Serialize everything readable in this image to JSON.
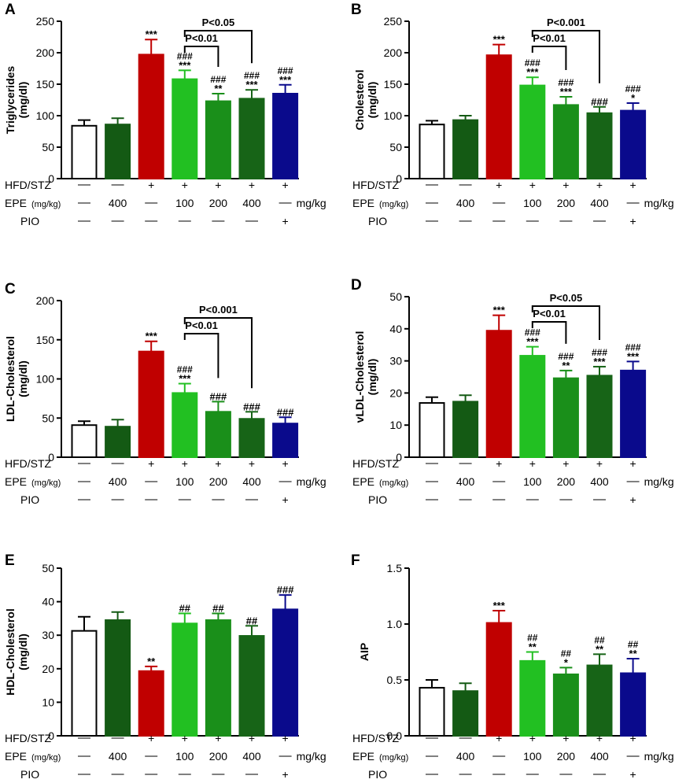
{
  "colors": {
    "control": "#ffffff",
    "epe400": "#145a14",
    "hfd": "#c00000",
    "epe100": "#22c022",
    "epe200": "#1a8f1a",
    "epe400hfd": "#176417",
    "pio": "#0a0a8c"
  },
  "bar_color_keys": [
    "control",
    "epe400",
    "hfd",
    "epe100",
    "epe200",
    "epe400hfd",
    "pio"
  ],
  "condition_table": {
    "rows": [
      {
        "label": "HFD/STZ",
        "suffix": "",
        "suffix_unit": "",
        "cells": [
          "—",
          "—",
          "+",
          "+",
          "+",
          "+",
          "+"
        ]
      },
      {
        "label": "EPE",
        "suffix": "(mg/kg)",
        "suffix_unit": "mg/kg",
        "cells": [
          "—",
          "400",
          "—",
          "100",
          "200",
          "400",
          "—"
        ]
      },
      {
        "label": "PIO",
        "suffix": "",
        "suffix_unit": "",
        "cells": [
          "—",
          "—",
          "—",
          "—",
          "—",
          "—",
          "+"
        ]
      }
    ]
  },
  "chart_data": [
    {
      "panel": "A",
      "type": "bar",
      "ylabel_line1": "Triglycerides",
      "ylabel_line2": "(mg/dl)",
      "ylim": [
        0,
        250
      ],
      "yticks": [
        "0",
        "50",
        "100",
        "150",
        "200",
        "250"
      ],
      "values": [
        84,
        86,
        197,
        158,
        123,
        127,
        135
      ],
      "errors": [
        9,
        10,
        24,
        14,
        12,
        14,
        14
      ],
      "annotations": [
        [
          "",
          ""
        ],
        [
          "",
          ""
        ],
        [
          "",
          "***"
        ],
        [
          "###",
          "***"
        ],
        [
          "###",
          "**"
        ],
        [
          "###",
          "***"
        ],
        [
          "###",
          "***"
        ]
      ],
      "brackets": [
        {
          "label": "P<0.01",
          "from": 3,
          "to": 4
        },
        {
          "label": "P<0.05",
          "from": 3,
          "to": 5
        }
      ]
    },
    {
      "panel": "B",
      "type": "bar",
      "ylabel_line1": "Cholesterol",
      "ylabel_line2": "(mg/dl)",
      "ylim": [
        0,
        250
      ],
      "yticks": [
        "0",
        "50",
        "100",
        "150",
        "200",
        "250"
      ],
      "values": [
        86,
        93,
        196,
        148,
        117,
        104,
        108
      ],
      "errors": [
        6,
        7,
        17,
        13,
        13,
        10,
        12
      ],
      "annotations": [
        [
          "",
          ""
        ],
        [
          "",
          ""
        ],
        [
          "",
          "***"
        ],
        [
          "###",
          "***"
        ],
        [
          "###",
          "***"
        ],
        [
          "",
          "###"
        ],
        [
          "###",
          "*"
        ]
      ],
      "brackets": [
        {
          "label": "P<0.01",
          "from": 3,
          "to": 4
        },
        {
          "label": "P<0.001",
          "from": 3,
          "to": 5
        }
      ]
    },
    {
      "panel": "C",
      "type": "bar",
      "ylabel_line1": "LDL-Cholesterol",
      "ylabel_line2": "(mg/dl)",
      "ylim": [
        0,
        200
      ],
      "yticks": [
        "0",
        "50",
        "100",
        "150",
        "200"
      ],
      "values": [
        41,
        39,
        135,
        82,
        58,
        49,
        43
      ],
      "errors": [
        5,
        9,
        13,
        12,
        13,
        9,
        8
      ],
      "annotations": [
        [
          "",
          ""
        ],
        [
          "",
          ""
        ],
        [
          "",
          "***"
        ],
        [
          "###",
          "***"
        ],
        [
          "",
          "###"
        ],
        [
          "",
          "###"
        ],
        [
          "",
          "###"
        ]
      ],
      "brackets": [
        {
          "label": "P<0.01",
          "from": 3,
          "to": 4
        },
        {
          "label": "P<0.001",
          "from": 3,
          "to": 5
        }
      ]
    },
    {
      "panel": "D",
      "type": "bar",
      "ylabel_line1": "vLDL-Cholesterol",
      "ylabel_line2": "(mg/dl)",
      "ylim": [
        0,
        50
      ],
      "yticks": [
        "0",
        "10",
        "20",
        "30",
        "40",
        "50"
      ],
      "values": [
        16.9,
        17.3,
        39.4,
        31.6,
        24.6,
        25.4,
        27.0
      ],
      "errors": [
        1.8,
        2.0,
        4.8,
        2.8,
        2.4,
        2.8,
        2.8
      ],
      "annotations": [
        [
          "",
          ""
        ],
        [
          "",
          ""
        ],
        [
          "",
          "***"
        ],
        [
          "###",
          "***"
        ],
        [
          "###",
          "**"
        ],
        [
          "###",
          "***"
        ],
        [
          "###",
          "***"
        ]
      ],
      "brackets": [
        {
          "label": "P<0.01",
          "from": 3,
          "to": 4
        },
        {
          "label": "P<0.05",
          "from": 3,
          "to": 5
        }
      ]
    },
    {
      "panel": "E",
      "type": "bar",
      "ylabel_line1": "HDL-Cholesterol",
      "ylabel_line2": "(mg/dl)",
      "ylim": [
        0,
        50
      ],
      "yticks": [
        "0",
        "10",
        "20",
        "30",
        "40",
        "50"
      ],
      "values": [
        31.3,
        34.5,
        19.3,
        33.5,
        34.5,
        29.8,
        37.7
      ],
      "errors": [
        4.2,
        2.4,
        1.4,
        3.0,
        2.0,
        3.0,
        4.3
      ],
      "annotations": [
        [
          "",
          ""
        ],
        [
          "",
          ""
        ],
        [
          "",
          "**"
        ],
        [
          "",
          "##"
        ],
        [
          "",
          "##"
        ],
        [
          "",
          "##"
        ],
        [
          "",
          "###"
        ]
      ],
      "brackets": []
    },
    {
      "panel": "F",
      "type": "bar",
      "ylabel_line1": "AIP",
      "ylabel_line2": "",
      "ylim": [
        0,
        1.5
      ],
      "yticks": [
        "0.0",
        "0.5",
        "1.0",
        "1.5"
      ],
      "values": [
        0.43,
        0.4,
        1.01,
        0.67,
        0.55,
        0.63,
        0.56
      ],
      "errors": [
        0.07,
        0.07,
        0.11,
        0.08,
        0.06,
        0.1,
        0.13
      ],
      "annotations": [
        [
          "",
          ""
        ],
        [
          "",
          ""
        ],
        [
          "",
          "***"
        ],
        [
          "##",
          "**"
        ],
        [
          "##",
          "*"
        ],
        [
          "##",
          "**"
        ],
        [
          "##",
          "**"
        ]
      ],
      "brackets": []
    }
  ]
}
